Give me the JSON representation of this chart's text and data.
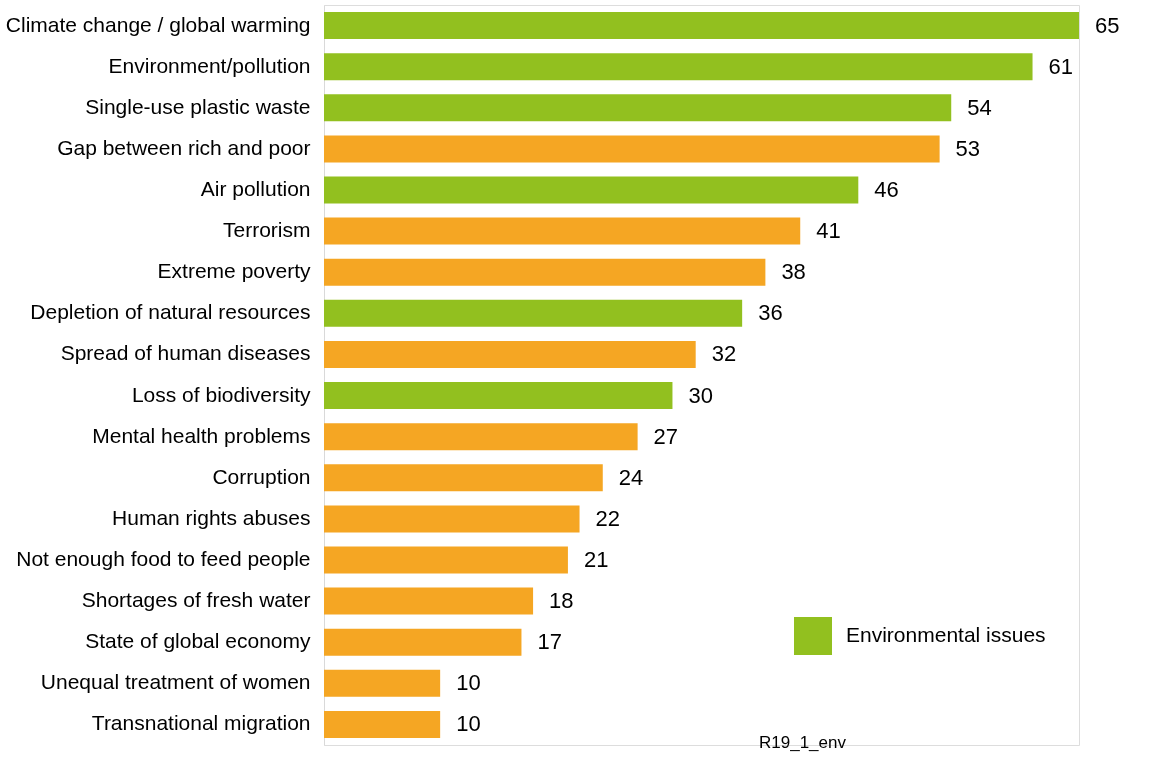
{
  "chart_data": {
    "type": "bar",
    "orientation": "horizontal",
    "categories": [
      "Climate change / global warming",
      "Environment/pollution",
      "Single-use plastic waste",
      "Gap between rich and poor",
      "Air pollution",
      "Terrorism",
      "Extreme poverty",
      "Depletion of natural resources",
      "Spread of human diseases",
      "Loss of biodiversity",
      "Mental health problems",
      "Corruption",
      "Human rights abuses",
      "Not enough food to feed people",
      "Shortages of fresh water",
      "State of global economy",
      "Unequal treatment of women",
      "Transnational migration"
    ],
    "series": [
      {
        "name": "Environmental issues",
        "color": "#92c01f",
        "values": [
          65,
          61,
          54,
          null,
          46,
          null,
          null,
          36,
          null,
          30,
          null,
          null,
          null,
          null,
          null,
          null,
          null,
          null
        ]
      },
      {
        "color": "#f5a623",
        "values": [
          null,
          null,
          null,
          53,
          null,
          41,
          38,
          null,
          32,
          null,
          27,
          24,
          22,
          21,
          18,
          17,
          10,
          10
        ]
      }
    ],
    "data_labels": true,
    "legend": "bottom right",
    "annotations": [
      "R19_1_env"
    ]
  }
}
